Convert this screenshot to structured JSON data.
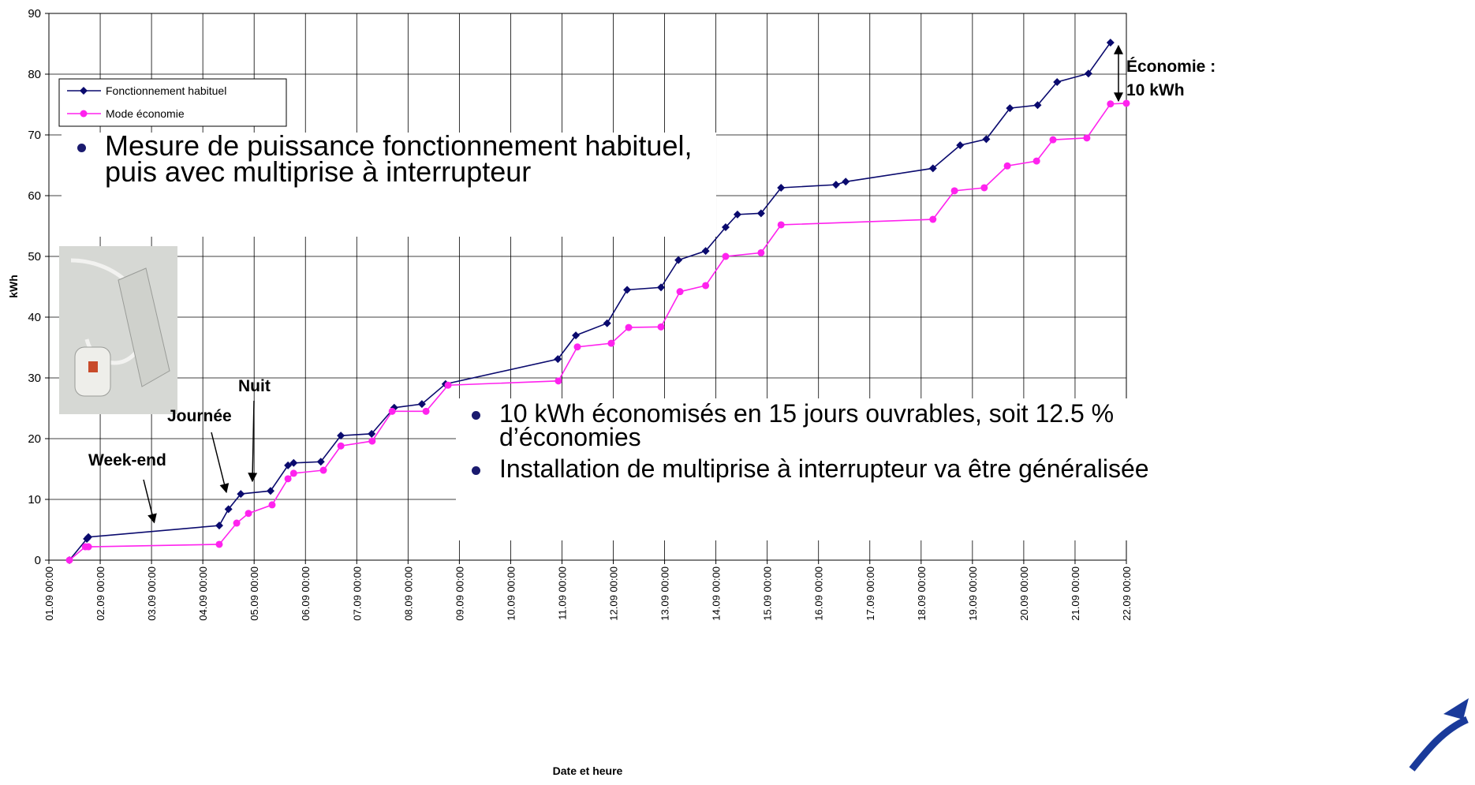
{
  "chart_data": {
    "type": "line",
    "xlabel": "Date et heure",
    "ylabel": "kWh",
    "xlim": [
      0,
      21
    ],
    "ylim": [
      0,
      90
    ],
    "yticks": [
      0,
      10,
      20,
      30,
      40,
      50,
      60,
      70,
      80,
      90
    ],
    "xticks": [
      {
        "value": 0,
        "label": "01.09 00:00"
      },
      {
        "value": 1,
        "label": "02.09 00:00"
      },
      {
        "value": 2,
        "label": "03.09 00:00"
      },
      {
        "value": 3,
        "label": "04.09 00:00"
      },
      {
        "value": 4,
        "label": "05.09 00:00"
      },
      {
        "value": 5,
        "label": "06.09 00:00"
      },
      {
        "value": 6,
        "label": "07.09 00:00"
      },
      {
        "value": 7,
        "label": "08.09 00:00"
      },
      {
        "value": 8,
        "label": "09.09 00:00"
      },
      {
        "value": 9,
        "label": "10.09 00:00"
      },
      {
        "value": 10,
        "label": "11.09 00:00"
      },
      {
        "value": 11,
        "label": "12.09 00:00"
      },
      {
        "value": 12,
        "label": "13.09 00:00"
      },
      {
        "value": 13,
        "label": "14.09 00:00"
      },
      {
        "value": 14,
        "label": "15.09 00:00"
      },
      {
        "value": 15,
        "label": "16.09 00:00"
      },
      {
        "value": 16,
        "label": "17.09 00:00"
      },
      {
        "value": 17,
        "label": "18.09 00:00"
      },
      {
        "value": 18,
        "label": "19.09 00:00"
      },
      {
        "value": 19,
        "label": "20.09 00:00"
      },
      {
        "value": 20,
        "label": "21.09 00:00"
      },
      {
        "value": 21,
        "label": "22.09 00:00"
      }
    ],
    "grid": true,
    "series": [
      {
        "name": "Fonctionnement habituel",
        "color": "#0a0a6e",
        "marker": "diamond",
        "x": [
          0.4,
          0.74,
          0.77,
          3.32,
          3.5,
          3.74,
          4.32,
          4.66,
          4.77,
          5.3,
          5.69,
          6.29,
          6.73,
          7.27,
          7.73,
          9.92,
          10.27,
          10.88,
          11.27,
          11.93,
          12.27,
          12.8,
          13.19,
          13.42,
          13.88,
          14.27,
          15.34,
          15.53,
          17.23,
          17.76,
          18.27,
          18.73,
          19.27,
          19.65,
          20.26,
          20.69
        ],
        "values": [
          0,
          3.5,
          3.8,
          5.7,
          8.4,
          10.9,
          11.4,
          15.6,
          16,
          16.2,
          20.5,
          20.8,
          25.1,
          25.7,
          29,
          33.1,
          37,
          39,
          44.5,
          44.9,
          49.4,
          50.9,
          54.8,
          56.9,
          57.1,
          61.3,
          61.8,
          62.3,
          64.5,
          68.3,
          69.3,
          74.4,
          74.9,
          78.7,
          80.1,
          85.2
        ]
      },
      {
        "name": "Mode économie",
        "color": "#ff22ee",
        "marker": "circle",
        "x": [
          0.4,
          0.71,
          0.77,
          3.32,
          3.66,
          3.89,
          4.35,
          4.66,
          4.77,
          5.35,
          5.69,
          6.3,
          6.69,
          7.35,
          7.78,
          9.93,
          10.3,
          10.96,
          11.3,
          11.93,
          12.3,
          12.8,
          13.19,
          13.88,
          14.27,
          17.23,
          17.65,
          18.23,
          18.68,
          19.25,
          19.57,
          20.23,
          20.69,
          21.0
        ],
        "values": [
          0,
          2.2,
          2.2,
          2.6,
          6.1,
          7.7,
          9.1,
          13.4,
          14.3,
          14.8,
          18.8,
          19.6,
          24.5,
          24.5,
          28.8,
          29.5,
          35.1,
          35.7,
          38.3,
          38.4,
          44.2,
          45.2,
          50,
          50.6,
          55.2,
          56.1,
          60.8,
          61.3,
          64.9,
          65.7,
          69.2,
          69.5,
          75.1,
          75.2
        ]
      }
    ],
    "annotations": [
      "Week-end",
      "Journée",
      "Nuit",
      "Économie : 10 kWh"
    ]
  },
  "text_boxes": {
    "top": [
      "Mesure de puissance fonctionnement habituel, puis avec multiprise à interrupteur"
    ],
    "bottom": [
      "10 kWh économisés en 15 jours ouvrables, soit 12.5 % d’économies",
      "Installation de multiprise à interrupteur va être généralisée"
    ]
  }
}
